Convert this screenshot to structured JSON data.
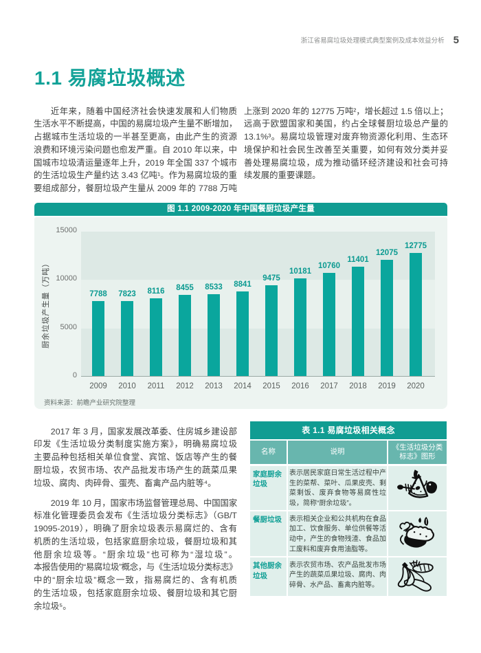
{
  "header": {
    "title": "浙江省易腐垃圾处理模式典型案例及成本效益分析",
    "page_number": "5"
  },
  "section": {
    "title": "1.1 易腐垃圾概述",
    "intro_left_lines": [
      "近年来，随着中国经济社会快速发展和人们物质",
      "生活水平不断提高，中国的易腐垃圾产生量不断增加，",
      "占据城市生活垃圾的一半甚至更高，由此产生的资源",
      "浪费和环境污染问题也愈发严重。自 2010 年以来，中",
      "国城市垃圾清运量逐年上升，2019 年全国 337 个城市",
      "的生活垃圾生产量约达 3.43 亿吨¹。作为易腐垃圾的重",
      "要组成部分，餐厨垃圾产生量从 2009 年的 7788 万吨"
    ],
    "intro_right_lines": [
      "上涨到 2020 年的 12775 万吨²，增长超过 1.5 倍以上；",
      "远高于欧盟国家和美国，约占全球餐厨垃圾总产量的",
      "13.1%³。易腐垃圾管理对废弃物资源化利用、生态环",
      "境保护和社会民生改善至关重要，如何有效分类并妥",
      "善处理易腐垃圾，成为推动循环经济建设和社会可持",
      "续发展的重要课题。"
    ],
    "paragraph_2017_lines": [
      "2017 年 3 月，国家发展改革委、住房城乡建设部",
      "印发《生活垃圾分类制度实施方案》，明确易腐垃圾",
      "主要品种包括相关单位食堂、宾馆、饭店等产生的餐",
      "厨垃圾，农贸市场、农产品批发市场产生的蔬菜瓜果",
      "垃圾、腐肉、肉碎骨、蛋壳、畜禽产品内脏等⁴。"
    ],
    "paragraph_2019_lines": [
      "2019 年 10 月，国家市场监督管理总局、中国国家",
      "标准化管理委员会发布《生活垃圾分类标志》（GB/T",
      "19095-2019），明确了厨余垃圾表示易腐烂的、含有",
      "机质的生活垃圾，包括家庭厨余垃圾，餐厨垃圾和其",
      "他厨余垃圾等。“厨余垃圾”也可称为“湿垃圾”。",
      "本报告使用的“易腐垃圾”概念，与《生活垃圾分类标志》",
      "中的“厨余垃圾”概念一致，指易腐烂的、含有机质",
      "的生活垃圾，包括家庭厨余垃圾、餐厨垃圾和其它厨",
      "余垃圾⁵。"
    ]
  },
  "chart": {
    "title": "图 1.1 2009-2020 年中国餐厨垃圾产生量",
    "source": "资料来源：前瞻产业研究院整理",
    "colors": {
      "titlebar": "#109c92",
      "panel": "#edf4f1",
      "band_dark": "#dde9e5",
      "band_light": "#e8f1ed",
      "bar": "#0aa69d",
      "value_label": "#0b9a91"
    }
  },
  "chart_data": {
    "type": "bar",
    "title": "图 1.1 2009-2020 年中国餐厨垃圾产生量",
    "categories": [
      "2009",
      "2010",
      "2011",
      "2012",
      "2013",
      "2014",
      "2015",
      "2016",
      "2017",
      "2018",
      "2019",
      "2020"
    ],
    "values": [
      7788,
      7823,
      8116,
      8455,
      8533,
      8841,
      9475,
      10181,
      10760,
      11401,
      12075,
      12775
    ],
    "xlabel": "",
    "ylabel": "厨余垃圾产生量（万吨）",
    "ylim": [
      0,
      15000
    ],
    "yticks": [
      0,
      5000,
      10000,
      15000
    ],
    "grid": "horizontal-bands",
    "legend": "none",
    "source": "资料来源：前瞻产业研究院整理"
  },
  "table": {
    "title": "表 1.1 易腐垃圾相关概念",
    "headers": [
      "名称",
      "说明",
      "《生活垃圾分类标志》图形"
    ],
    "rows": [
      {
        "name": "家庭厨余垃圾",
        "desc": "表示居民家庭日常生活过程中产生的菜帮、菜叶、瓜果皮壳、剩菜剩饭、废弃食物等易腐性垃圾，简称“厨余垃圾”。",
        "icon": "apple-core-fishbone-icon"
      },
      {
        "name": "餐厨垃圾",
        "desc": "表示相关企业和公共机构在食品加工、饮食服务、单位供餐等活动中，产生的食物残渣、食品加工废料和废弃食用油脂等。",
        "icon": "food-scraps-bone-icon"
      },
      {
        "name": "其他厨余垃圾",
        "desc": "表示农贸市场、农产品批发市场产生的蔬菜瓜果垃圾、腐肉、肉碎骨、水产品、畜禽内脏等。",
        "icon": "banana-peel-carrot-icon"
      }
    ]
  }
}
